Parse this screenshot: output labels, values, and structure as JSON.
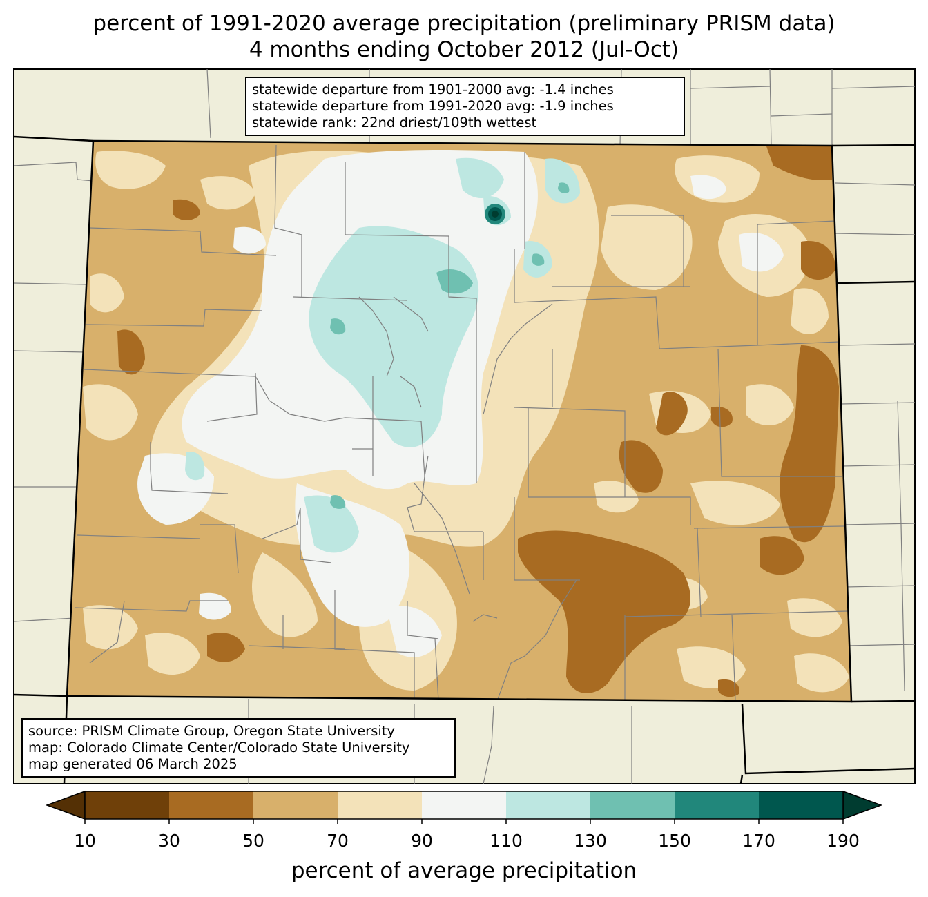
{
  "title": {
    "line1": "percent of 1991-2020 average precipitation (preliminary PRISM data)",
    "line2": "4 months ending October 2012 (Jul-Oct)"
  },
  "stats_box": {
    "lines": [
      "statewide departure from 1901-2000 avg: -1.4 inches",
      "statewide departure from 1991-2020 avg: -1.9 inches",
      "statewide rank: 22nd driest/109th wettest"
    ]
  },
  "credits_box": {
    "lines": [
      "source: PRISM Climate Group, Oregon State University",
      "map: Colorado Climate Center/Colorado State University",
      "map generated 06 March 2025"
    ]
  },
  "colorbar": {
    "label": "percent of average precipitation",
    "ticks": [
      "10",
      "30",
      "50",
      "70",
      "90",
      "110",
      "130",
      "150",
      "170",
      "190"
    ],
    "under_color": "#543005",
    "over_color": "#003c30",
    "colors": [
      "#6f4009",
      "#a86b22",
      "#d8b06b",
      "#f3e2b9",
      "#f3f5f3",
      "#bde7e1",
      "#6fc0b1",
      "#21877b",
      "#00574e"
    ]
  },
  "colors": {
    "background_land": "#efeedb",
    "county_lines": "#808080",
    "state_lines": "#000000"
  }
}
